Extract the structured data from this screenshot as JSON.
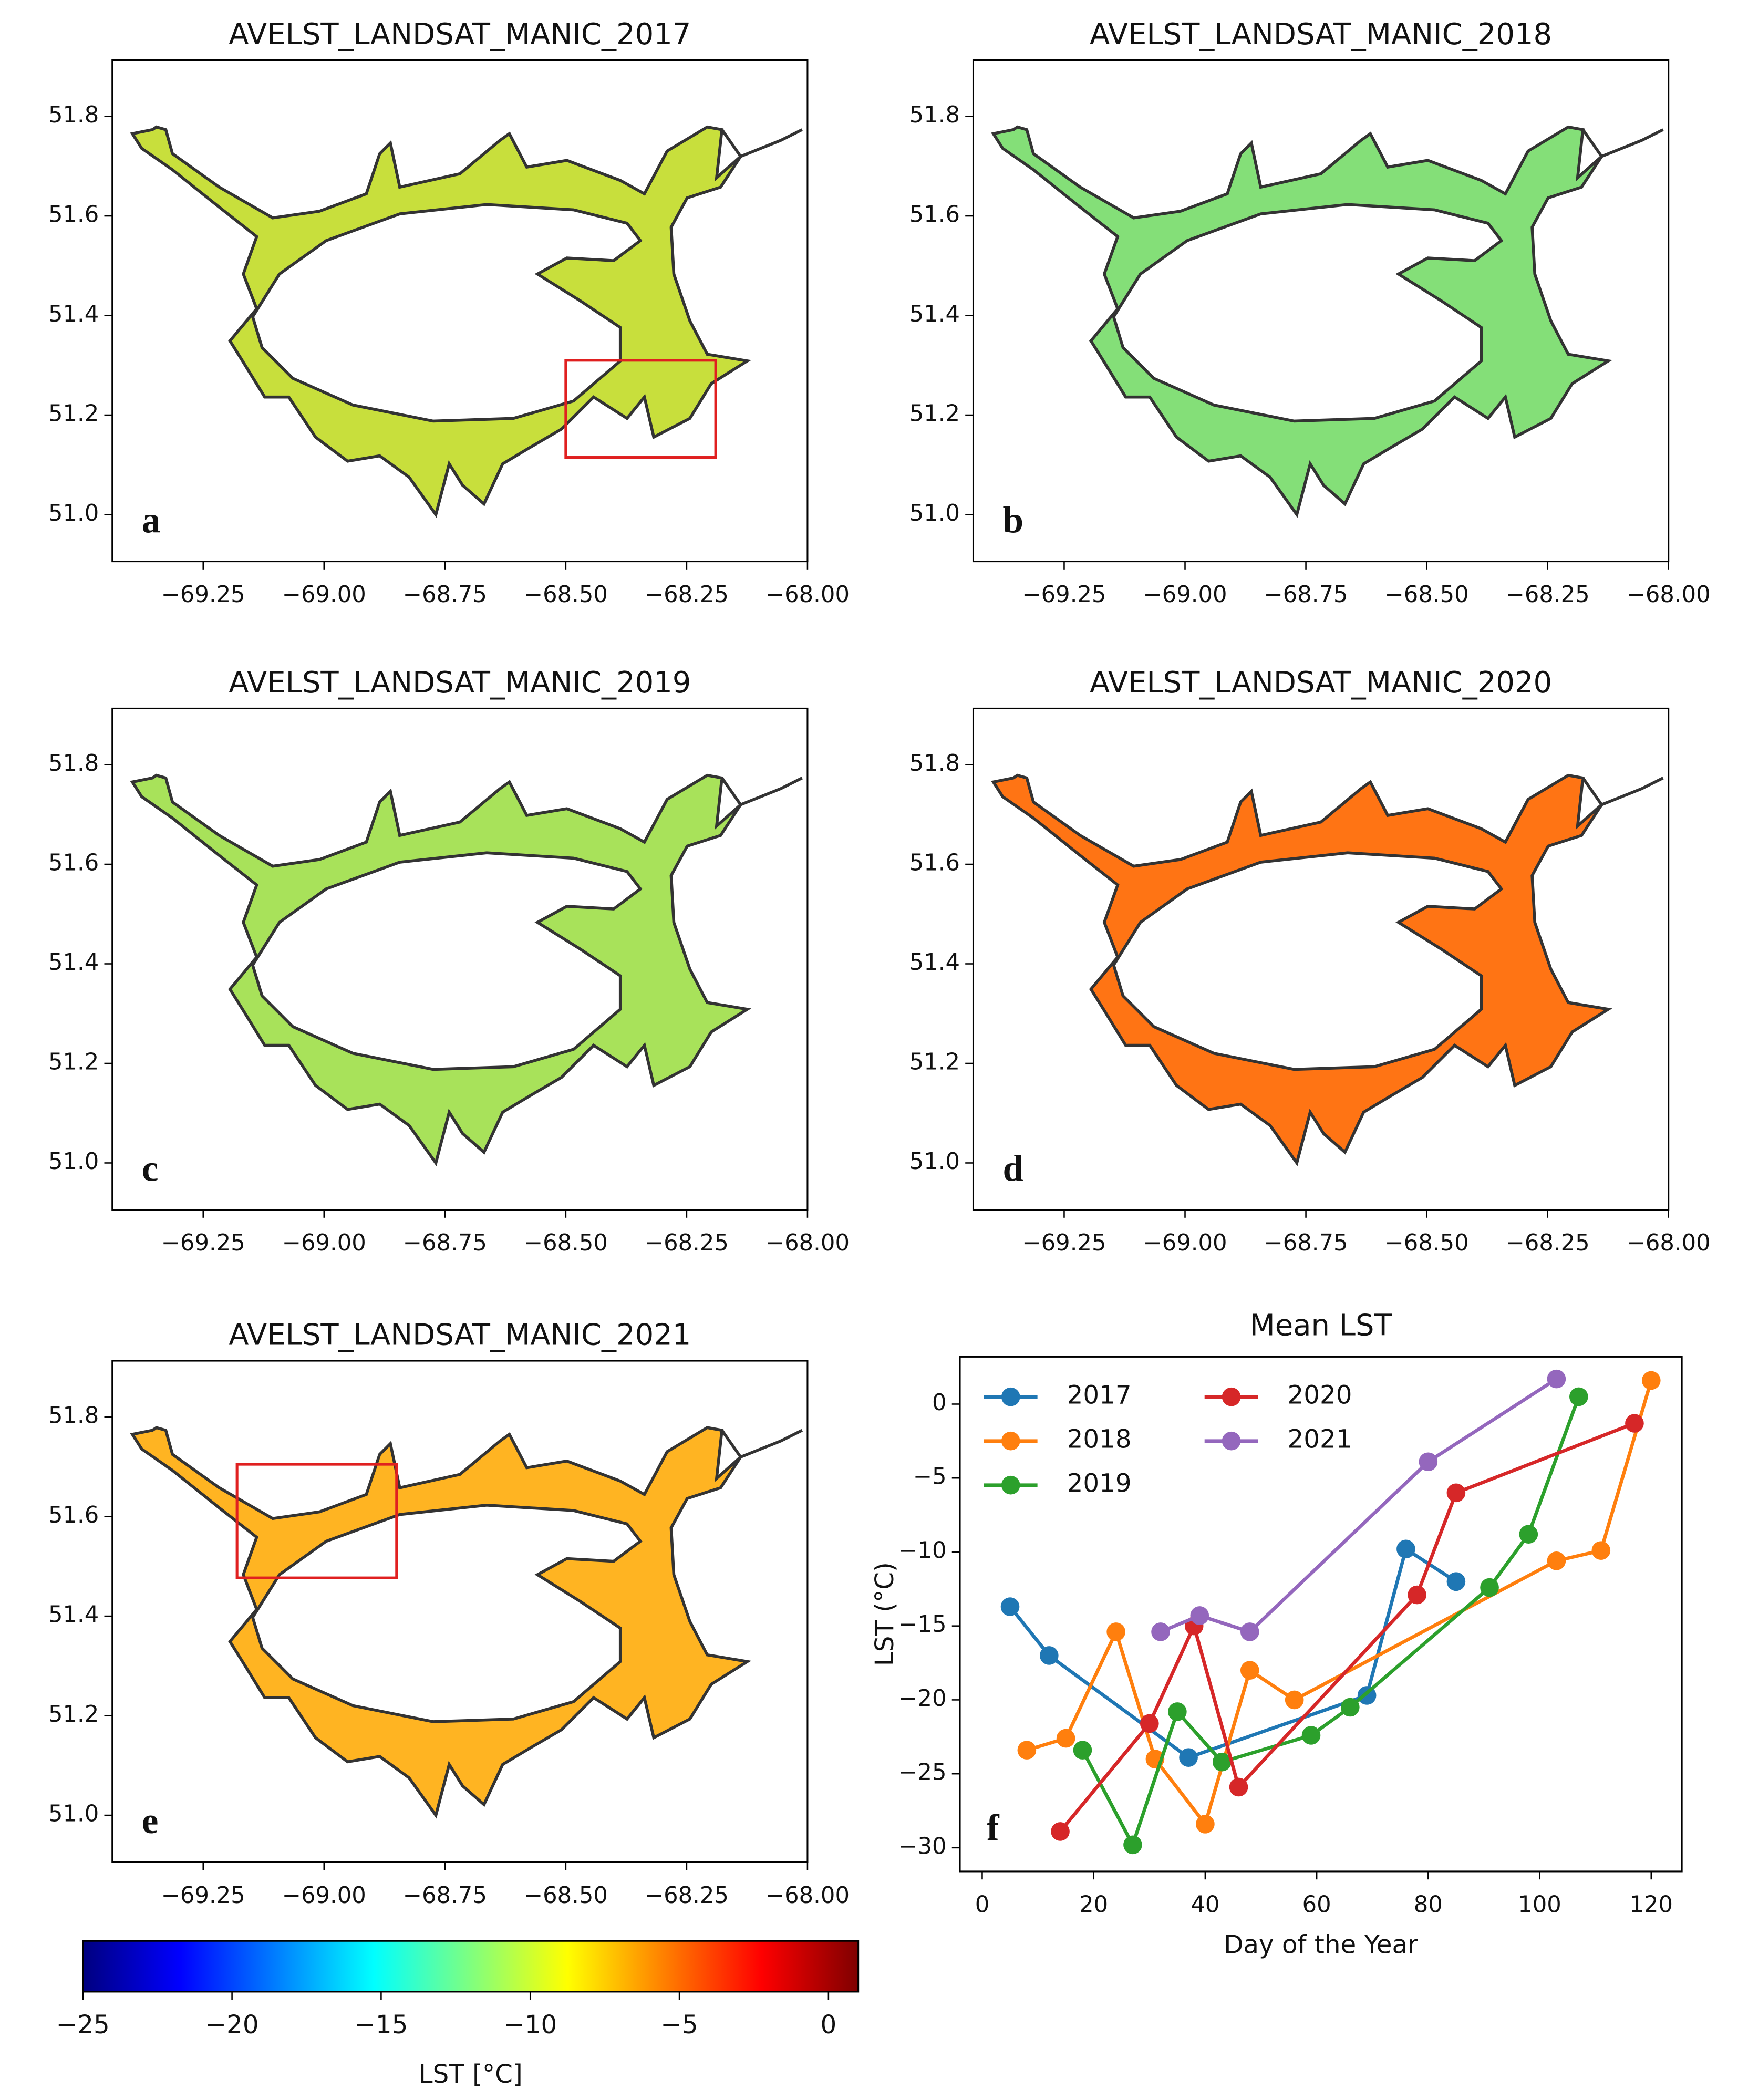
{
  "chart_data": [
    {
      "type": "map",
      "title": "AVELST_LANDSAT_MANIC_2017",
      "panel_label": "a",
      "color": "#c8df3c",
      "xlim": [
        -69.438,
        -68.0
      ],
      "ylim": [
        50.906,
        51.913
      ],
      "xticks": [
        {
          "value": -69.25,
          "label": "−69.25"
        },
        {
          "value": -69.0,
          "label": "−69.00"
        },
        {
          "value": -68.75,
          "label": "−68.75"
        },
        {
          "value": -68.5,
          "label": "−68.50"
        },
        {
          "value": -68.25,
          "label": "−68.25"
        },
        {
          "value": -68.0,
          "label": "−68.00"
        }
      ],
      "yticks": [
        {
          "value": 51.0,
          "label": "51.0"
        },
        51.2,
        51.4,
        51.6,
        51.8
      ],
      "box": {
        "xlim": [
          -68.5,
          -68.19
        ],
        "ylim": [
          51.115,
          51.31
        ],
        "color": "#e02020"
      }
    },
    {
      "type": "map",
      "title": "AVELST_LANDSAT_MANIC_2018",
      "panel_label": "b",
      "color": "#84df78",
      "xlim": [
        -69.438,
        -68.0
      ],
      "ylim": [
        50.906,
        51.913
      ],
      "xticks": [
        {
          "value": -69.25,
          "label": "−69.25"
        },
        {
          "value": -69.0,
          "label": "−69.00"
        },
        {
          "value": -68.75,
          "label": "−68.75"
        },
        {
          "value": -68.5,
          "label": "−68.50"
        },
        {
          "value": -68.25,
          "label": "−68.25"
        },
        {
          "value": -68.0,
          "label": "−68.00"
        }
      ],
      "yticks": [
        {
          "value": 51.0,
          "label": "51.0"
        },
        51.2,
        51.4,
        51.6,
        51.8
      ]
    },
    {
      "type": "map",
      "title": "AVELST_LANDSAT_MANIC_2019",
      "panel_label": "c",
      "color": "#a8e25a",
      "xlim": [
        -69.438,
        -68.0
      ],
      "ylim": [
        50.906,
        51.913
      ],
      "xticks": [
        {
          "value": -69.25,
          "label": "−69.25"
        },
        {
          "value": -69.0,
          "label": "−69.00"
        },
        {
          "value": -68.75,
          "label": "−68.75"
        },
        {
          "value": -68.5,
          "label": "−68.50"
        },
        {
          "value": -68.25,
          "label": "−68.25"
        },
        {
          "value": -68.0,
          "label": "−68.00"
        }
      ],
      "yticks": [
        {
          "value": 51.0,
          "label": "51.0"
        },
        51.2,
        51.4,
        51.6,
        51.8
      ]
    },
    {
      "type": "map",
      "title": "AVELST_LANDSAT_MANIC_2020",
      "panel_label": "d",
      "color": "#ff7414",
      "xlim": [
        -69.438,
        -68.0
      ],
      "ylim": [
        50.906,
        51.913
      ],
      "xticks": [
        {
          "value": -69.25,
          "label": "−69.25"
        },
        {
          "value": -69.0,
          "label": "−69.00"
        },
        {
          "value": -68.75,
          "label": "−68.75"
        },
        {
          "value": -68.5,
          "label": "−68.50"
        },
        {
          "value": -68.25,
          "label": "−68.25"
        },
        {
          "value": -68.0,
          "label": "−68.00"
        }
      ],
      "yticks": [
        {
          "value": 51.0,
          "label": "51.0"
        },
        51.2,
        51.4,
        51.6,
        51.8
      ]
    },
    {
      "type": "map",
      "title": "AVELST_LANDSAT_MANIC_2021",
      "panel_label": "e",
      "color": "#ffb422",
      "xlim": [
        -69.438,
        -68.0
      ],
      "ylim": [
        50.906,
        51.913
      ],
      "xticks": [
        {
          "value": -69.25,
          "label": "−69.25"
        },
        {
          "value": -69.0,
          "label": "−69.00"
        },
        {
          "value": -68.75,
          "label": "−68.75"
        },
        {
          "value": -68.5,
          "label": "−68.50"
        },
        {
          "value": -68.25,
          "label": "−68.25"
        },
        {
          "value": -68.0,
          "label": "−68.00"
        }
      ],
      "yticks": [
        {
          "value": 51.0,
          "label": "51.0"
        },
        51.2,
        51.4,
        51.6,
        51.8
      ],
      "box": {
        "xlim": [
          -69.18,
          -68.85
        ],
        "ylim": [
          51.477,
          51.705
        ],
        "color": "#e02020"
      }
    },
    {
      "type": "line",
      "title": "Mean LST",
      "panel_label": "f",
      "x_label": "Day of the Year",
      "y_label": "LST (°C)",
      "xlim": [
        -4,
        125.5
      ],
      "ylim": [
        -31.6,
        3.2
      ],
      "xticks": [
        0,
        20,
        40,
        60,
        80,
        100,
        120
      ],
      "yticks": [
        {
          "value": -30,
          "label": "−30"
        },
        {
          "value": -25,
          "label": "−25"
        },
        {
          "value": -20,
          "label": "−20"
        },
        {
          "value": -15,
          "label": "−15"
        },
        {
          "value": -10,
          "label": "−10"
        },
        {
          "value": -5,
          "label": "−5"
        },
        0
      ],
      "legend": "upper left",
      "legend_columns": 2,
      "series": [
        {
          "name": "2017",
          "color": "#1f77b4",
          "x": [
            5,
            12,
            37,
            69,
            76,
            85
          ],
          "values": [
            -13.7,
            -17,
            -23.9,
            -19.7,
            -9.8,
            -12
          ]
        },
        {
          "name": "2018",
          "color": "#ff7f0e",
          "x": [
            8,
            15,
            24,
            31,
            40,
            48,
            56,
            103,
            111,
            120
          ],
          "values": [
            -23.4,
            -22.6,
            -15.4,
            -24,
            -28.4,
            -18,
            -20,
            -10.6,
            -9.9,
            1.6
          ]
        },
        {
          "name": "2019",
          "color": "#2ca02c",
          "x": [
            18,
            27,
            35,
            43,
            59,
            66,
            91,
            98,
            107
          ],
          "values": [
            -23.4,
            -29.8,
            -20.8,
            -24.2,
            -22.4,
            -20.5,
            -12.4,
            -8.8,
            0.5
          ]
        },
        {
          "name": "2020",
          "color": "#d62728",
          "x": [
            14,
            30,
            38,
            46,
            78,
            85,
            117
          ],
          "values": [
            -28.9,
            -21.6,
            -15,
            -25.9,
            -12.9,
            -6,
            -1.3
          ]
        },
        {
          "name": "2021",
          "color": "#9467bd",
          "x": [
            32,
            39,
            48,
            80,
            103
          ],
          "values": [
            -15.4,
            -14.3,
            -15.4,
            -3.9,
            1.7
          ]
        }
      ]
    },
    {
      "type": "colorbar",
      "label": "LST [°C]",
      "lim": [
        -25,
        1
      ],
      "ticks": [
        {
          "value": -25,
          "label": "−25"
        },
        {
          "value": -20,
          "label": "−20"
        },
        {
          "value": -15,
          "label": "−15"
        },
        {
          "value": -10,
          "label": "−10"
        },
        {
          "value": -5,
          "label": "−5"
        },
        0
      ],
      "colors": [
        "#00007f",
        "#0000ff",
        "#007fff",
        "#00ffff",
        "#7fff7f",
        "#ffff00",
        "#ff7f00",
        "#ff0000",
        "#7f0000"
      ]
    }
  ]
}
